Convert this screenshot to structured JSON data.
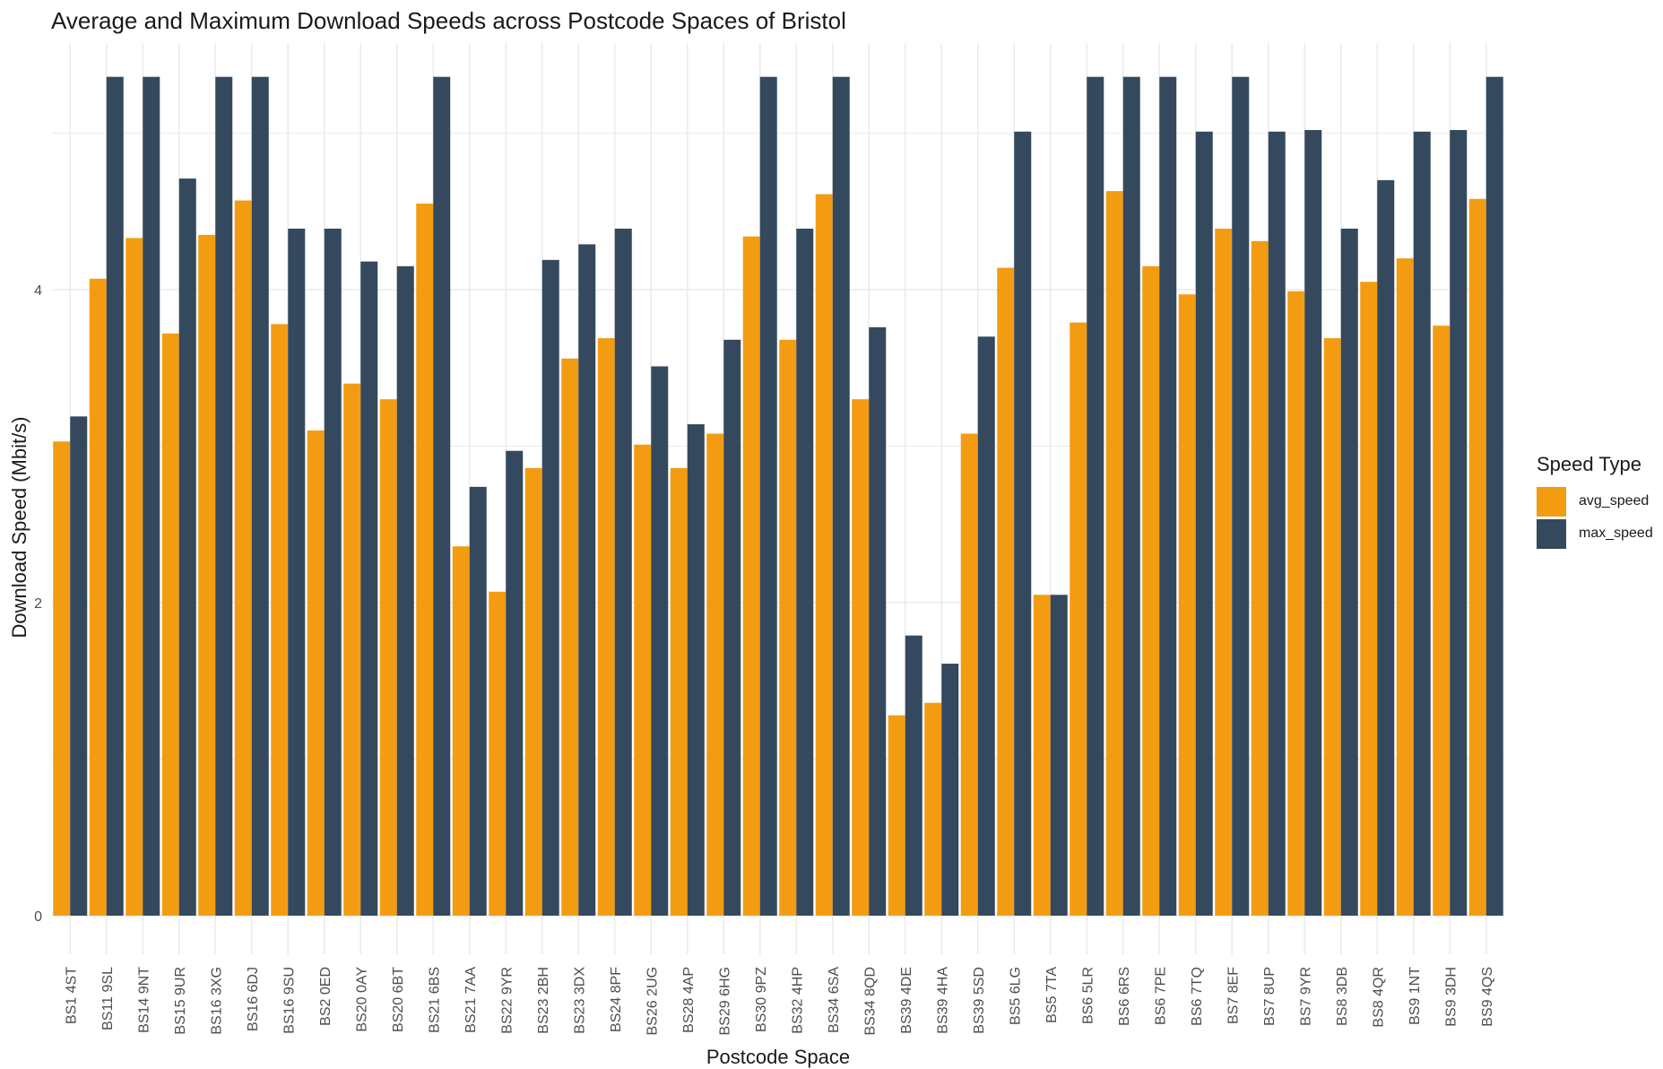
{
  "chart_data": {
    "type": "bar",
    "title": "Average and Maximum Download Speeds across Postcode Spaces of Bristol",
    "xlabel": "Postcode Space",
    "ylabel": "Download Speed (Mbit/s)",
    "ylim": [
      0,
      5.5
    ],
    "yticks": [
      0,
      2,
      4
    ],
    "grid": true,
    "legend": {
      "title": "Speed Type",
      "position": "right"
    },
    "categories": [
      "BS1 4ST",
      "BS11 9SL",
      "BS14 9NT",
      "BS15 9UR",
      "BS16 3XG",
      "BS16 6DJ",
      "BS16 9SU",
      "BS2 0ED",
      "BS20 0AY",
      "BS20 6BT",
      "BS21 6BS",
      "BS21 7AA",
      "BS22 9YR",
      "BS23 2BH",
      "BS23 3DX",
      "BS24 8PF",
      "BS26 2UG",
      "BS28 4AP",
      "BS29 6HG",
      "BS30 9PZ",
      "BS32 4HP",
      "BS34 6SA",
      "BS34 8QD",
      "BS39 4DE",
      "BS39 4HA",
      "BS39 5SD",
      "BS5 6LG",
      "BS5 7TA",
      "BS6 5LR",
      "BS6 6RS",
      "BS6 7PE",
      "BS6 7TQ",
      "BS7 8EF",
      "BS7 8UP",
      "BS7 9YR",
      "BS8 3DB",
      "BS8 4QR",
      "BS9 1NT",
      "BS9 3DH",
      "BS9 4QS"
    ],
    "series": [
      {
        "name": "avg_speed",
        "color": "#F39C12",
        "values": [
          3.03,
          4.07,
          4.33,
          3.72,
          4.35,
          4.57,
          3.78,
          3.1,
          3.4,
          3.3,
          4.55,
          2.36,
          2.07,
          2.86,
          3.56,
          3.69,
          3.01,
          2.86,
          3.08,
          4.34,
          3.68,
          4.61,
          3.3,
          1.28,
          1.36,
          3.08,
          4.14,
          2.05,
          3.79,
          4.63,
          4.15,
          3.97,
          4.39,
          4.31,
          3.99,
          3.69,
          4.05,
          4.2,
          3.77,
          4.58
        ]
      },
      {
        "name": "max_speed",
        "color": "#34495E",
        "values": [
          3.19,
          5.36,
          5.36,
          4.71,
          5.36,
          5.36,
          4.39,
          4.39,
          4.18,
          4.15,
          5.36,
          2.74,
          2.97,
          4.19,
          4.29,
          4.39,
          3.51,
          3.14,
          3.68,
          5.36,
          4.39,
          5.36,
          3.76,
          1.79,
          1.61,
          3.7,
          5.01,
          2.05,
          5.36,
          5.36,
          5.36,
          5.01,
          5.36,
          5.01,
          5.02,
          4.39,
          4.7,
          5.01,
          5.02,
          5.36
        ]
      }
    ]
  }
}
